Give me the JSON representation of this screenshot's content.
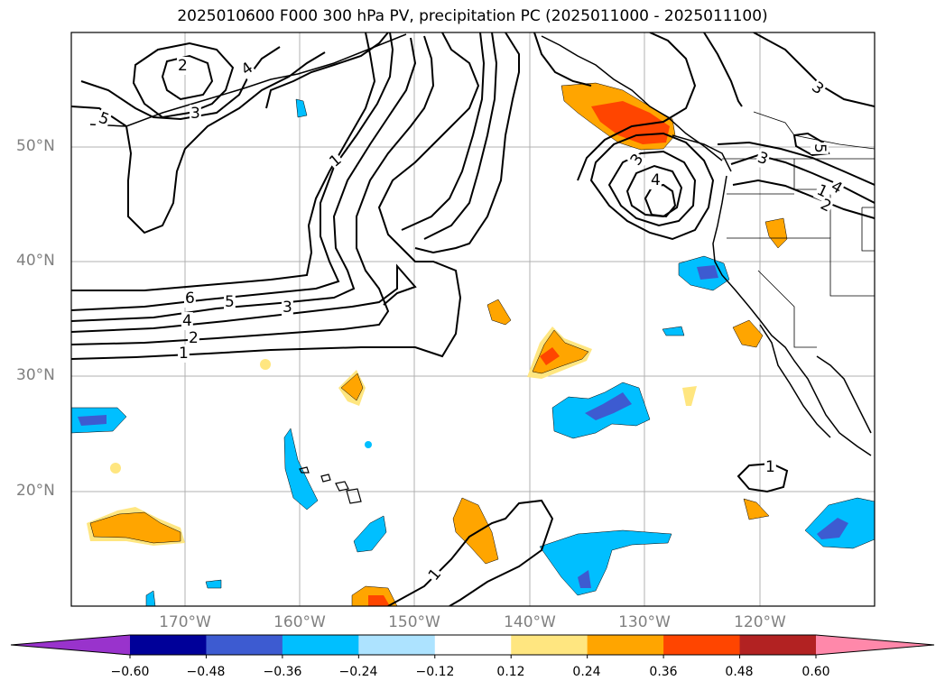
{
  "title": "2025010600 F000 300 hPa PV, precipitation PC (2025011000 - 2025011100)",
  "lat_labels": [
    "50°N",
    "40°N",
    "30°N",
    "20°N"
  ],
  "lon_labels": [
    "170°W",
    "160°W",
    "150°W",
    "140°W",
    "130°W",
    "120°W"
  ],
  "pv_contour_labels": [
    "2",
    "3",
    "4",
    "5",
    "1",
    "6",
    "5",
    "4",
    "3",
    "2",
    "1",
    "3",
    "4",
    "3",
    "5",
    "4",
    "3",
    "2",
    "1",
    "1",
    "1"
  ],
  "colorbar": {
    "ticks": [
      "−0.60",
      "−0.48",
      "−0.36",
      "−0.24",
      "−0.12",
      "0.12",
      "0.24",
      "0.36",
      "0.48",
      "0.60"
    ],
    "colors": [
      "#9933cc",
      "#000099",
      "#3d5bd1",
      "#00bfff",
      "#ade3ff",
      "#ffffff",
      "#ffe680",
      "#ffa500",
      "#ff4500",
      "#b22222",
      "#ff88aa"
    ]
  }
}
